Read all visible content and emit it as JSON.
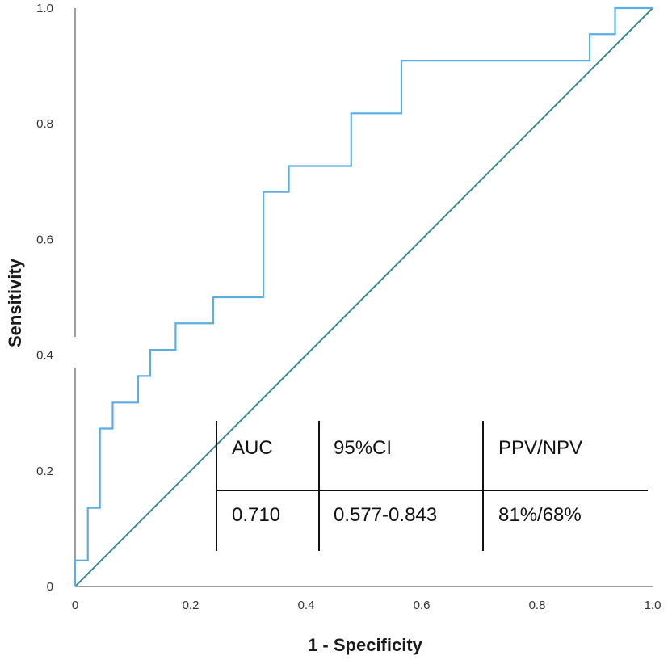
{
  "chart_data": {
    "type": "line",
    "xlabel": "1 - Specificity",
    "ylabel": "Sensitivity",
    "xlim": [
      0,
      1
    ],
    "ylim": [
      0,
      1
    ],
    "x_ticks": [
      0,
      0.2,
      0.4,
      0.6,
      0.8,
      1.0
    ],
    "x_tick_labels": [
      "0",
      "0.2",
      "0.4",
      "0.6",
      "0.8",
      "1.0"
    ],
    "y_ticks": [
      0,
      0.2,
      0.4,
      0.6,
      0.8,
      1.0
    ],
    "y_tick_labels": [
      "0",
      "0.2",
      "0.4",
      "0.6",
      "0.8",
      "1.0"
    ],
    "series": [
      {
        "name": "ROC curve",
        "color": "#5aaee6",
        "x": [
          0,
          0,
          0.022,
          0.022,
          0.043,
          0.043,
          0.065,
          0.065,
          0.109,
          0.109,
          0.13,
          0.13,
          0.174,
          0.174,
          0.239,
          0.239,
          0.326,
          0.326,
          0.37,
          0.37,
          0.478,
          0.478,
          0.565,
          0.565,
          0.891,
          0.891,
          0.935,
          0.935,
          1.0
        ],
        "y": [
          0,
          0.045,
          0.045,
          0.136,
          0.136,
          0.273,
          0.273,
          0.318,
          0.318,
          0.364,
          0.364,
          0.409,
          0.409,
          0.455,
          0.455,
          0.5,
          0.5,
          0.682,
          0.682,
          0.727,
          0.727,
          0.818,
          0.818,
          0.909,
          0.909,
          0.955,
          0.955,
          1.0,
          1.0
        ]
      },
      {
        "name": "Reference line",
        "color": "#3b8b8b",
        "x": [
          0,
          1
        ],
        "y": [
          0,
          1
        ]
      }
    ],
    "table": {
      "headers": [
        "AUC",
        "95%CI",
        "PPV/NPV"
      ],
      "values": [
        "0.710",
        "0.577-0.843",
        "81%/68%"
      ]
    }
  }
}
